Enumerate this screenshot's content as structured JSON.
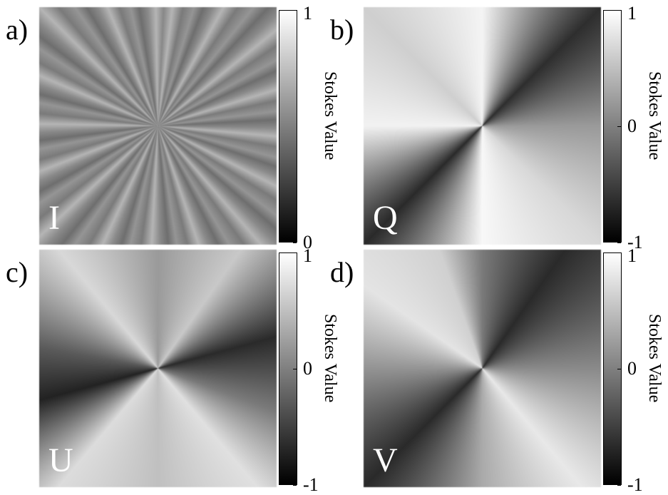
{
  "panels": [
    {
      "label": "a)",
      "stokes": "I",
      "colorbar": {
        "label": "Stokes Value",
        "lim": [
          0,
          1
        ],
        "ticks": [
          0,
          1
        ]
      }
    },
    {
      "label": "b)",
      "stokes": "Q",
      "colorbar": {
        "label": "Stokes Value",
        "lim": [
          -1,
          1
        ],
        "ticks": [
          -1,
          0,
          1
        ]
      }
    },
    {
      "label": "c)",
      "stokes": "U",
      "colorbar": {
        "label": "Stokes Value",
        "lim": [
          -1,
          1
        ],
        "ticks": [
          -1,
          0,
          1
        ]
      }
    },
    {
      "label": "d)",
      "stokes": "V",
      "colorbar": {
        "label": "Stokes Value",
        "lim": [
          -1,
          1
        ],
        "ticks": [
          -1,
          0,
          1
        ]
      }
    }
  ]
}
